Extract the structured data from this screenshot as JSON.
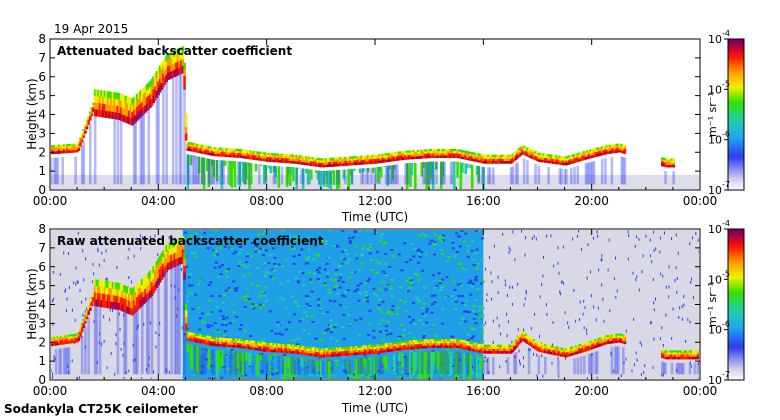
{
  "date_label": "19 Apr 2015",
  "instrument_label": "Sodankyla CT25K ceilometer",
  "chart_data": [
    {
      "type": "heatmap",
      "title": "Attenuated backscatter coefficient",
      "xlabel": "Time (UTC)",
      "ylabel": "Height (km)",
      "x_ticks": [
        "00:00",
        "04:00",
        "08:00",
        "12:00",
        "16:00",
        "20:00",
        "00:00"
      ],
      "x_range_hours": [
        0,
        24
      ],
      "y_ticks": [
        "0",
        "1",
        "2",
        "3",
        "4",
        "5",
        "6",
        "7",
        "8"
      ],
      "ylim": [
        0,
        8
      ],
      "colorbar": {
        "ticks": [
          "10",
          "10",
          "10",
          "10"
        ],
        "exponents": [
          "-7",
          "-6",
          "-5",
          "-4"
        ],
        "label": "m⁻¹ sr⁻¹",
        "range": [
          1e-07,
          0.0001
        ]
      },
      "layer_height_km": [
        [
          0.0,
          2.1
        ],
        [
          1.0,
          2.2
        ],
        [
          1.6,
          4.5
        ],
        [
          2.5,
          4.3
        ],
        [
          3.0,
          4.0
        ],
        [
          3.7,
          5.0
        ],
        [
          4.3,
          6.4
        ],
        [
          4.9,
          6.8
        ],
        [
          5.0,
          2.3
        ],
        [
          6.0,
          2.0
        ],
        [
          7.0,
          1.9
        ],
        [
          8.0,
          1.7
        ],
        [
          9.0,
          1.6
        ],
        [
          10.0,
          1.4
        ],
        [
          11.0,
          1.5
        ],
        [
          12.0,
          1.6
        ],
        [
          13.0,
          1.8
        ],
        [
          14.0,
          1.9
        ],
        [
          15.0,
          1.9
        ],
        [
          16.0,
          1.6
        ],
        [
          17.0,
          1.6
        ],
        [
          17.4,
          2.1
        ],
        [
          18.0,
          1.7
        ],
        [
          19.0,
          1.5
        ],
        [
          19.7,
          1.8
        ],
        [
          20.5,
          2.1
        ],
        [
          21.0,
          2.2
        ],
        [
          22.7,
          1.4
        ]
      ],
      "clear_sky_hours": [
        [
          21.2,
          22.3
        ],
        [
          23.0,
          24.0
        ]
      ]
    },
    {
      "type": "heatmap",
      "title": "Raw attenuated backscatter coefficient",
      "xlabel": "Time (UTC)",
      "ylabel": "Height (km)",
      "x_ticks": [
        "00:00",
        "04:00",
        "08:00",
        "12:00",
        "16:00",
        "20:00",
        "00:00"
      ],
      "x_range_hours": [
        0,
        24
      ],
      "y_ticks": [
        "0",
        "1",
        "2",
        "3",
        "4",
        "5",
        "6",
        "7",
        "8"
      ],
      "ylim": [
        0,
        8
      ],
      "colorbar": {
        "ticks": [
          "10",
          "10",
          "10",
          "10"
        ],
        "exponents": [
          "-7",
          "-6",
          "-5",
          "-4"
        ],
        "label": "m⁻¹ sr⁻¹",
        "range": [
          1e-07,
          0.0001
        ]
      },
      "layer_height_km": [
        [
          0.0,
          2.0
        ],
        [
          1.0,
          2.2
        ],
        [
          1.6,
          4.5
        ],
        [
          2.5,
          4.3
        ],
        [
          3.0,
          4.0
        ],
        [
          3.7,
          5.0
        ],
        [
          4.3,
          6.4
        ],
        [
          4.9,
          6.8
        ],
        [
          5.0,
          2.3
        ],
        [
          6.0,
          2.0
        ],
        [
          7.0,
          1.9
        ],
        [
          8.0,
          1.7
        ],
        [
          9.0,
          1.6
        ],
        [
          10.0,
          1.4
        ],
        [
          11.0,
          1.5
        ],
        [
          12.0,
          1.6
        ],
        [
          13.0,
          1.8
        ],
        [
          14.0,
          1.9
        ],
        [
          15.0,
          1.9
        ],
        [
          16.0,
          1.6
        ],
        [
          17.0,
          1.6
        ],
        [
          17.4,
          2.3
        ],
        [
          18.0,
          1.7
        ],
        [
          19.0,
          1.4
        ],
        [
          19.7,
          1.7
        ],
        [
          20.5,
          2.1
        ],
        [
          21.0,
          2.2
        ],
        [
          22.7,
          1.3
        ]
      ],
      "noise_region_hours": [
        4.9,
        16.0
      ]
    }
  ]
}
